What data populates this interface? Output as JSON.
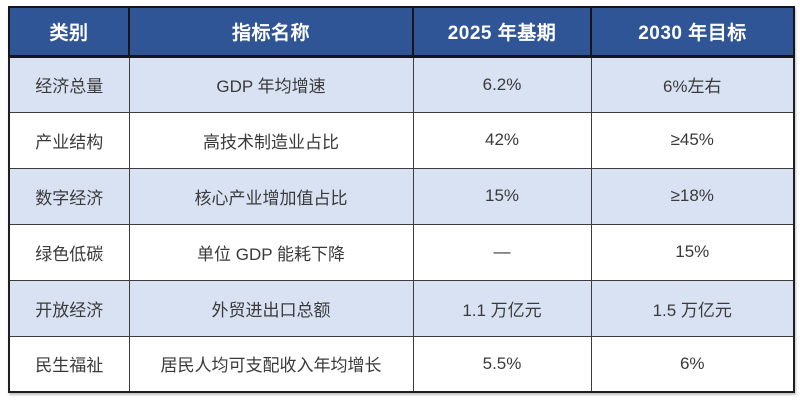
{
  "chart_data": {
    "type": "table",
    "title": "",
    "columns": [
      "类别",
      "指标名称",
      "2025 年基期",
      "2030 年目标"
    ],
    "rows": [
      [
        "经济总量",
        "GDP 年均增速",
        "6.2%",
        "6%左右"
      ],
      [
        "产业结构",
        "高技术制造业占比",
        "42%",
        "≥45%"
      ],
      [
        "数字经济",
        "核心产业增加值占比",
        "15%",
        "≥18%"
      ],
      [
        "绿色低碳",
        "单位 GDP 能耗下降",
        "—",
        "15%"
      ],
      [
        "开放经济",
        "外贸进出口总额",
        "1.1 万亿元",
        "1.5 万亿元"
      ],
      [
        "民生福祉",
        "居民人均可支配收入年均增长",
        "5.5%",
        "6%"
      ]
    ],
    "layout_hints": {
      "header_bg": "#2F5597",
      "header_text_color": "#FFFFFF",
      "alt_row_bg": "#D9E2F3",
      "plain_row_bg": "#FFFFFF",
      "border_color": "#3D3D3D",
      "body_text_color": "#3A3A3A",
      "row_striping": "alternating starting with shaded first row"
    }
  }
}
